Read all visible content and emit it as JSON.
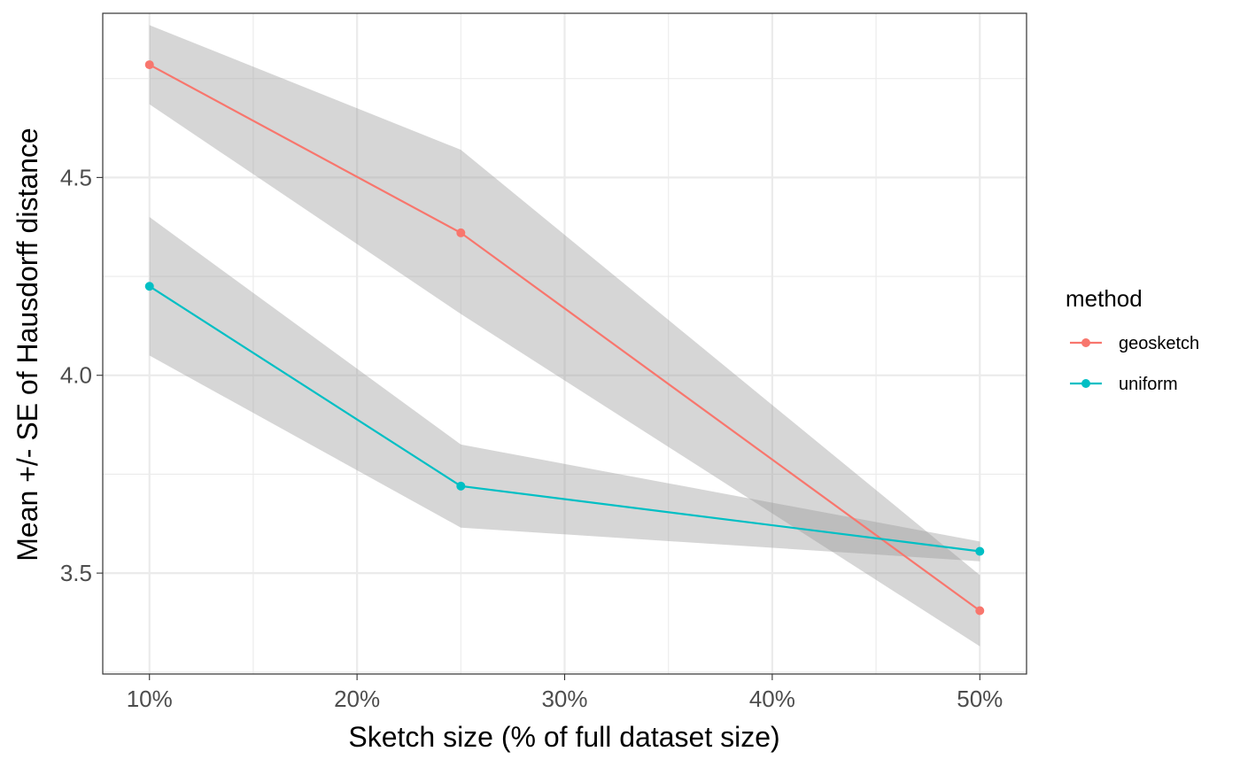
{
  "chart_data": {
    "type": "line",
    "title": "",
    "xlabel": "Sketch size (% of full dataset size)",
    "ylabel": "Mean +/- SE of Hausdorff distance",
    "x": [
      10,
      25,
      50
    ],
    "xlim": [
      7.75,
      52.25
    ],
    "ylim": [
      3.245,
      4.915
    ],
    "x_ticks": [
      10,
      20,
      30,
      40,
      50
    ],
    "x_tick_labels": [
      "10%",
      "20%",
      "30%",
      "40%",
      "50%"
    ],
    "y_ticks": [
      3.5,
      4.0,
      4.5
    ],
    "y_tick_labels": [
      "3.5",
      "4.0",
      "4.5"
    ],
    "grid": true,
    "legend": {
      "title": "method",
      "position": "right"
    },
    "series": [
      {
        "name": "geosketch",
        "color": "#F8766D",
        "values": [
          4.785,
          4.36,
          3.405
        ],
        "lower": [
          4.685,
          4.155,
          3.315
        ],
        "upper": [
          4.885,
          4.57,
          3.495
        ]
      },
      {
        "name": "uniform",
        "color": "#00BFC4",
        "values": [
          4.225,
          3.72,
          3.555
        ],
        "lower": [
          4.05,
          3.615,
          3.53
        ],
        "upper": [
          4.4,
          3.825,
          3.58
        ]
      }
    ],
    "ribbon_color": "#999999"
  }
}
